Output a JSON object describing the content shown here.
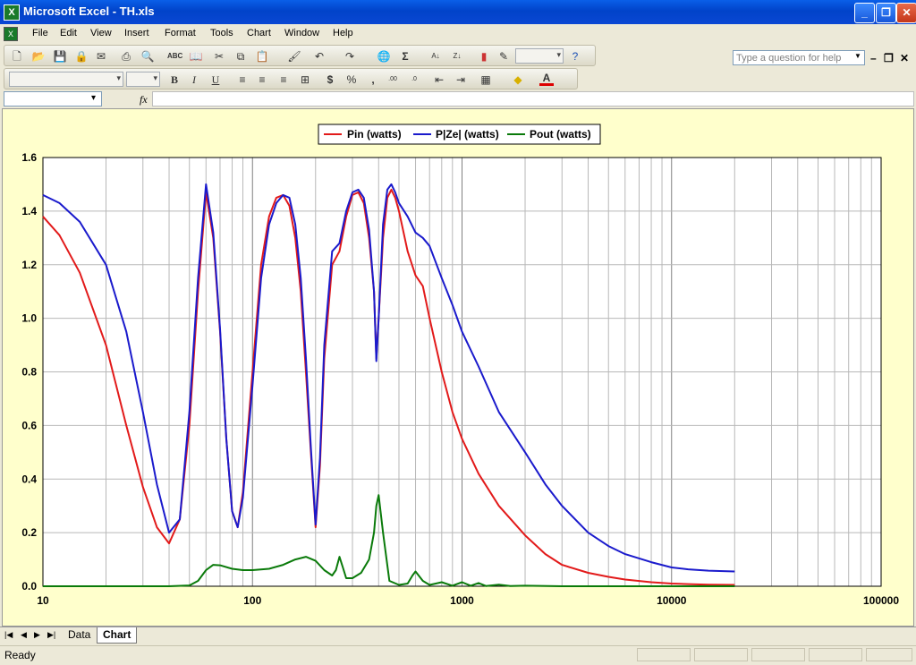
{
  "window": {
    "title": "Microsoft Excel - TH.xls",
    "app_icon": "excel-icon"
  },
  "menu": {
    "items": [
      "File",
      "Edit",
      "View",
      "Insert",
      "Format",
      "Tools",
      "Chart",
      "Window",
      "Help"
    ],
    "ask_placeholder": "Type a question for help"
  },
  "toolbar": {
    "icons": [
      "new-icon",
      "open-icon",
      "save-icon",
      "permission-icon",
      "email-icon",
      "print-icon",
      "print-preview-icon",
      "spelling-icon",
      "research-icon",
      "cut-icon",
      "copy-icon",
      "paste-icon",
      "format-painter-icon",
      "undo-icon",
      "redo-icon",
      "hyperlink-icon",
      "autosum-icon",
      "sort-ascending-icon",
      "sort-descending-icon",
      "chart-wizard-icon",
      "drawing-icon",
      "help-icon"
    ],
    "format_icons": [
      "bold-icon",
      "italic-icon",
      "underline-icon",
      "align-left-icon",
      "center-icon",
      "align-right-icon",
      "merge-center-icon",
      "currency-icon",
      "percent-icon",
      "comma-icon",
      "increase-decimal-icon",
      "decrease-decimal-icon",
      "decrease-indent-icon",
      "increase-indent-icon",
      "borders-icon",
      "fill-color-icon",
      "font-color-icon"
    ],
    "bold": "B",
    "italic": "I",
    "underline": "U",
    "currency": "$",
    "percent": "%",
    "sigma": "Σ",
    "font_color": "A"
  },
  "formula": {
    "fx": "fx",
    "namebox": "",
    "content": ""
  },
  "sheets": {
    "tabs": [
      "Data",
      "Chart"
    ],
    "active": "Chart"
  },
  "status": {
    "text": "Ready"
  },
  "colors": {
    "pin": "#e21a1a",
    "pze": "#1a1acc",
    "pout": "#0a7a0a",
    "chart_bg": "#ffffcc"
  },
  "chart_data": {
    "type": "line",
    "xscale": "log",
    "xlim": [
      10,
      100000
    ],
    "ylim": [
      0,
      1.6
    ],
    "x_ticks": [
      "10",
      "100",
      "1000",
      "10000",
      "100000"
    ],
    "y_ticks": [
      "0.0",
      "0.2",
      "0.4",
      "0.6",
      "0.8",
      "1.0",
      "1.2",
      "1.4",
      "1.6"
    ],
    "grid": true,
    "legend_position": "top-center",
    "series": [
      {
        "name": "Pin (watts)",
        "color": "#e21a1a",
        "x": [
          10,
          12,
          15,
          20,
          25,
          30,
          35,
          40,
          45,
          50,
          55,
          60,
          65,
          70,
          75,
          80,
          85,
          90,
          100,
          110,
          120,
          130,
          140,
          150,
          160,
          170,
          180,
          190,
          200,
          210,
          220,
          240,
          260,
          280,
          300,
          320,
          340,
          360,
          380,
          390,
          400,
          420,
          440,
          460,
          480,
          500,
          550,
          600,
          650,
          700,
          800,
          900,
          1000,
          1200,
          1500,
          2000,
          2500,
          3000,
          4000,
          5000,
          6000,
          8000,
          10000,
          12000,
          15000,
          20000
        ],
        "y": [
          1.38,
          1.31,
          1.17,
          0.9,
          0.6,
          0.37,
          0.22,
          0.16,
          0.25,
          0.6,
          1.1,
          1.47,
          1.3,
          0.95,
          0.55,
          0.28,
          0.22,
          0.35,
          0.8,
          1.2,
          1.38,
          1.45,
          1.46,
          1.42,
          1.3,
          1.1,
          0.8,
          0.5,
          0.22,
          0.45,
          0.85,
          1.2,
          1.25,
          1.38,
          1.46,
          1.47,
          1.43,
          1.3,
          1.1,
          0.85,
          1.0,
          1.3,
          1.45,
          1.48,
          1.45,
          1.4,
          1.25,
          1.16,
          1.12,
          1.0,
          0.8,
          0.65,
          0.55,
          0.42,
          0.3,
          0.19,
          0.12,
          0.08,
          0.05,
          0.035,
          0.025,
          0.015,
          0.01,
          0.008,
          0.006,
          0.005
        ]
      },
      {
        "name": "P|Ze| (watts)",
        "color": "#1a1acc",
        "x": [
          10,
          12,
          15,
          20,
          25,
          30,
          35,
          40,
          45,
          50,
          55,
          60,
          65,
          70,
          75,
          80,
          85,
          90,
          100,
          110,
          120,
          130,
          140,
          150,
          160,
          170,
          180,
          190,
          200,
          210,
          220,
          240,
          260,
          280,
          300,
          320,
          340,
          360,
          380,
          390,
          400,
          420,
          440,
          460,
          480,
          500,
          550,
          600,
          650,
          700,
          800,
          900,
          1000,
          1200,
          1500,
          2000,
          2500,
          3000,
          4000,
          5000,
          6000,
          8000,
          10000,
          12000,
          15000,
          20000
        ],
        "y": [
          1.46,
          1.43,
          1.36,
          1.2,
          0.95,
          0.65,
          0.38,
          0.2,
          0.25,
          0.65,
          1.15,
          1.5,
          1.32,
          0.96,
          0.55,
          0.28,
          0.22,
          0.33,
          0.75,
          1.15,
          1.35,
          1.43,
          1.46,
          1.45,
          1.35,
          1.15,
          0.85,
          0.52,
          0.23,
          0.48,
          0.9,
          1.25,
          1.28,
          1.4,
          1.47,
          1.48,
          1.45,
          1.33,
          1.1,
          0.84,
          1.0,
          1.35,
          1.48,
          1.5,
          1.47,
          1.43,
          1.38,
          1.32,
          1.3,
          1.27,
          1.15,
          1.05,
          0.95,
          0.82,
          0.65,
          0.5,
          0.38,
          0.3,
          0.2,
          0.15,
          0.12,
          0.09,
          0.07,
          0.063,
          0.058,
          0.055
        ]
      },
      {
        "name": "Pout (watts)",
        "color": "#0a7a0a",
        "x": [
          10,
          20,
          40,
          50,
          55,
          60,
          65,
          70,
          80,
          90,
          100,
          120,
          140,
          160,
          180,
          200,
          220,
          240,
          250,
          260,
          270,
          280,
          300,
          330,
          360,
          380,
          390,
          400,
          420,
          450,
          500,
          550,
          580,
          600,
          650,
          700,
          750,
          800,
          900,
          1000,
          1100,
          1200,
          1300,
          1500,
          1700,
          2000,
          3000,
          5000,
          8000,
          10000,
          15000,
          20000
        ],
        "y": [
          0,
          0,
          0,
          0.003,
          0.02,
          0.06,
          0.08,
          0.078,
          0.065,
          0.06,
          0.06,
          0.065,
          0.08,
          0.1,
          0.11,
          0.095,
          0.06,
          0.04,
          0.06,
          0.11,
          0.07,
          0.03,
          0.03,
          0.05,
          0.1,
          0.2,
          0.3,
          0.34,
          0.2,
          0.02,
          0.005,
          0.01,
          0.04,
          0.055,
          0.02,
          0.005,
          0.01,
          0.015,
          0.002,
          0.015,
          0.002,
          0.012,
          0.001,
          0.006,
          0.001,
          0.002,
          0,
          0,
          0,
          0,
          0,
          0
        ]
      }
    ]
  }
}
